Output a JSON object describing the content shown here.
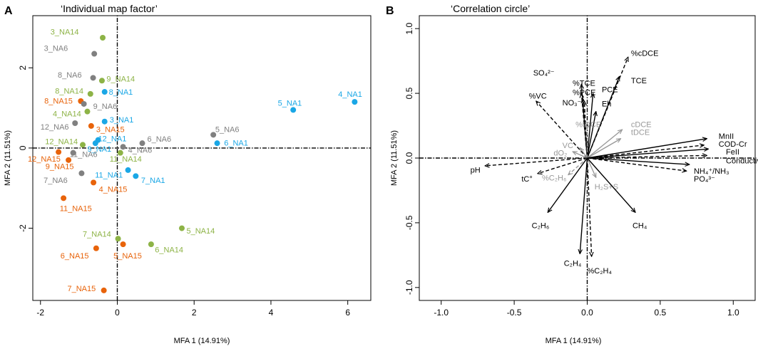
{
  "chart_data": [
    {
      "panel_label": "A",
      "type": "scatter",
      "title": "‘Individual map factor’",
      "xlabel": "MFA 1 (14.91%)",
      "ylabel": "MFA 2 (11.51%)",
      "xlim": [
        -2.2,
        6.6
      ],
      "ylim": [
        -3.8,
        3.3
      ],
      "xticks": [
        -2,
        0,
        2,
        4,
        6
      ],
      "yticks": [
        -2,
        0,
        2
      ],
      "colors": {
        "NA1": "#1aa7e6",
        "NA6": "#808080",
        "NA14": "#8db346",
        "NA15": "#e8630a"
      },
      "points": [
        {
          "label": "3_NA14",
          "group": "NA14",
          "x": -0.38,
          "y": 2.75,
          "lx": -1.74,
          "ly": 2.9
        },
        {
          "label": "3_NA6",
          "group": "NA6",
          "x": -0.6,
          "y": 2.35,
          "lx": -1.91,
          "ly": 2.49
        },
        {
          "label": "8_NA6",
          "group": "NA6",
          "x": -0.63,
          "y": 1.75,
          "lx": -1.55,
          "ly": 1.83
        },
        {
          "label": "9_NA14",
          "group": "NA14",
          "x": -0.4,
          "y": 1.68,
          "lx": -0.28,
          "ly": 1.73
        },
        {
          "label": "8_NA14",
          "group": "NA14",
          "x": -0.7,
          "y": 1.35,
          "lx": -1.62,
          "ly": 1.43
        },
        {
          "label": "8_NA1",
          "group": "NA1",
          "x": -0.33,
          "y": 1.4,
          "lx": -0.22,
          "ly": 1.4
        },
        {
          "label": "8_NA15",
          "group": "NA15",
          "x": -0.95,
          "y": 1.17,
          "lx": -1.9,
          "ly": 1.18
        },
        {
          "label": "9_NA6",
          "group": "NA6",
          "x": -0.87,
          "y": 1.1,
          "lx": -0.63,
          "ly": 1.05
        },
        {
          "label": "4_NA14",
          "group": "NA14",
          "x": -0.78,
          "y": 0.91,
          "lx": -1.68,
          "ly": 0.86
        },
        {
          "label": "3_NA1",
          "group": "NA1",
          "x": -0.33,
          "y": 0.66,
          "lx": -0.2,
          "ly": 0.71
        },
        {
          "label": "12_NA6",
          "group": "NA6",
          "x": -1.1,
          "y": 0.62,
          "lx": -2.0,
          "ly": 0.53
        },
        {
          "label": "3_NA15",
          "group": "NA15",
          "x": -0.68,
          "y": 0.55,
          "lx": -0.55,
          "ly": 0.47
        },
        {
          "label": "12_NA1",
          "group": "NA1",
          "x": -0.5,
          "y": 0.2,
          "lx": -0.5,
          "ly": 0.24
        },
        {
          "label": "12_NA14",
          "group": "NA14",
          "x": -0.9,
          "y": 0.08,
          "lx": -1.88,
          "ly": 0.17
        },
        {
          "label": "9_NA1",
          "group": "NA1",
          "x": -0.57,
          "y": 0.12,
          "lx": -0.78,
          "ly": -0.02
        },
        {
          "label": "4_NA6",
          "group": "NA6",
          "x": 0.15,
          "y": 0.03,
          "lx": 0.28,
          "ly": -0.05
        },
        {
          "label": "6_NA6",
          "group": "NA6",
          "x": 0.65,
          "y": 0.12,
          "lx": 0.78,
          "ly": 0.23
        },
        {
          "label": "11_NA6",
          "group": "NA6",
          "x": -1.15,
          "y": -0.12,
          "lx": -1.24,
          "ly": -0.15
        },
        {
          "label": "11_NA14",
          "group": "NA14",
          "x": 0.08,
          "y": -0.12,
          "lx": -0.2,
          "ly": -0.27
        },
        {
          "label": "12_NA15",
          "group": "NA15",
          "x": -1.53,
          "y": -0.1,
          "lx": -2.33,
          "ly": -0.27
        },
        {
          "label": "9_NA15",
          "group": "NA15",
          "x": -1.27,
          "y": -0.3,
          "lx": -1.87,
          "ly": -0.45
        },
        {
          "label": "7_NA6",
          "group": "NA6",
          "x": -0.93,
          "y": -0.63,
          "lx": -1.92,
          "ly": -0.8
        },
        {
          "label": "11_NA1",
          "group": "NA1",
          "x": 0.28,
          "y": -0.55,
          "lx": -0.58,
          "ly": -0.67
        },
        {
          "label": "7_NA1",
          "group": "NA1",
          "x": 0.48,
          "y": -0.7,
          "lx": 0.62,
          "ly": -0.8
        },
        {
          "label": "4_NA15",
          "group": "NA15",
          "x": -0.62,
          "y": -0.86,
          "lx": -0.48,
          "ly": -1.02
        },
        {
          "label": "11_NA15",
          "group": "NA15",
          "x": -1.4,
          "y": -1.25,
          "lx": -1.5,
          "ly": -1.5
        },
        {
          "label": "5_NA14",
          "group": "NA14",
          "x": 1.68,
          "y": -2.0,
          "lx": 1.8,
          "ly": -2.06
        },
        {
          "label": "7_NA14",
          "group": "NA14",
          "x": 0.02,
          "y": -2.26,
          "lx": -0.9,
          "ly": -2.14
        },
        {
          "label": "6_NA14",
          "group": "NA14",
          "x": 0.88,
          "y": -2.4,
          "lx": 0.98,
          "ly": -2.53
        },
        {
          "label": "5_NA15",
          "group": "NA15",
          "x": 0.15,
          "y": -2.4,
          "lx": -0.1,
          "ly": -2.68
        },
        {
          "label": "6_NA15",
          "group": "NA15",
          "x": -0.55,
          "y": -2.5,
          "lx": -1.48,
          "ly": -2.68
        },
        {
          "label": "7_NA15",
          "group": "NA15",
          "x": -0.35,
          "y": -3.55,
          "lx": -1.3,
          "ly": -3.5
        },
        {
          "label": "5_NA6",
          "group": "NA6",
          "x": 2.5,
          "y": 0.33,
          "lx": 2.55,
          "ly": 0.47
        },
        {
          "label": "6_NA1",
          "group": "NA1",
          "x": 2.6,
          "y": 0.12,
          "lx": 2.78,
          "ly": 0.13
        },
        {
          "label": "5_NA1",
          "group": "NA1",
          "x": 4.58,
          "y": 0.95,
          "lx": 4.18,
          "ly": 1.13
        },
        {
          "label": "4_NA1",
          "group": "NA1",
          "x": 6.18,
          "y": 1.15,
          "lx": 5.75,
          "ly": 1.35
        }
      ]
    },
    {
      "panel_label": "B",
      "type": "vector",
      "title": "‘Correlation circle’",
      "xlabel": "MFA 1 (14.91%)",
      "ylabel": "MFA 2 (11.51%)",
      "xlim": [
        -1.15,
        1.15
      ],
      "ylim": [
        -1.1,
        1.1
      ],
      "xticks": [
        -1.0,
        -0.5,
        0.0,
        0.5,
        1.0
      ],
      "yticks": [
        -1.0,
        -0.5,
        0.0,
        0.5,
        1.0
      ],
      "tick_labels": [
        "-1.0",
        "-0.5",
        "0.0",
        "0.5",
        "1.0"
      ],
      "colors": {
        "active": "#000000",
        "supplementary": "#999999"
      },
      "vectors": [
        {
          "label": "%cDCE",
          "x": 0.28,
          "y": 0.78,
          "lx": 0.3,
          "ly": 0.81,
          "dash": true,
          "grey": false
        },
        {
          "label": "TCE",
          "x": 0.22,
          "y": 0.63,
          "lx": 0.3,
          "ly": 0.6,
          "dash": false,
          "grey": false
        },
        {
          "label": "SO₄²⁻",
          "x": -0.04,
          "y": 0.57,
          "lx": -0.37,
          "ly": 0.66,
          "dash": false,
          "grey": false
        },
        {
          "label": "%TCE",
          "x": -0.04,
          "y": 0.5,
          "lx": -0.1,
          "ly": 0.58,
          "dash": true,
          "grey": false
        },
        {
          "label": "%PCE",
          "x": -0.03,
          "y": 0.46,
          "lx": -0.1,
          "ly": 0.51,
          "dash": true,
          "grey": false
        },
        {
          "label": "PCE",
          "x": 0.04,
          "y": 0.5,
          "lx": 0.1,
          "ly": 0.53,
          "dash": false,
          "grey": false
        },
        {
          "label": "NO₃⁻",
          "x": -0.02,
          "y": 0.44,
          "lx": -0.17,
          "ly": 0.43,
          "dash": true,
          "grey": false
        },
        {
          "label": "%VC",
          "x": -0.35,
          "y": 0.44,
          "lx": -0.4,
          "ly": 0.48,
          "dash": true,
          "grey": false
        },
        {
          "label": "Eh",
          "x": 0.06,
          "y": 0.36,
          "lx": 0.1,
          "ly": 0.42,
          "dash": false,
          "grey": false
        },
        {
          "label": "%tDCE",
          "x": 0.0,
          "y": 0.27,
          "lx": -0.08,
          "ly": 0.26,
          "dash": true,
          "grey": true
        },
        {
          "label": "cDCE",
          "x": 0.24,
          "y": 0.22,
          "lx": 0.3,
          "ly": 0.26,
          "dash": false,
          "grey": true
        },
        {
          "label": "tDCE",
          "x": 0.23,
          "y": 0.15,
          "lx": 0.3,
          "ly": 0.2,
          "dash": false,
          "grey": true
        },
        {
          "label": "VC",
          "x": -0.05,
          "y": 0.08,
          "lx": -0.17,
          "ly": 0.1,
          "dash": false,
          "grey": true
        },
        {
          "label": "dO₂",
          "x": -0.1,
          "y": 0.05,
          "lx": -0.23,
          "ly": 0.04,
          "dash": false,
          "grey": true
        },
        {
          "label": "MnII",
          "x": 0.82,
          "y": 0.15,
          "lx": 0.9,
          "ly": 0.17,
          "dash": false,
          "grey": false
        },
        {
          "label": "COD-Cr",
          "x": 0.8,
          "y": 0.1,
          "lx": 0.9,
          "ly": 0.11,
          "dash": true,
          "grey": false
        },
        {
          "label": "FeII",
          "x": 0.83,
          "y": 0.07,
          "lx": 0.95,
          "ly": 0.05,
          "dash": false,
          "grey": false
        },
        {
          "label": "Conductivity",
          "x": 0.82,
          "y": 0.02,
          "lx": 0.95,
          "ly": -0.02,
          "dash": true,
          "grey": false
        },
        {
          "label": "NH₄⁺/NH₃",
          "x": 0.7,
          "y": -0.05,
          "lx": 0.73,
          "ly": -0.1,
          "dash": false,
          "grey": false
        },
        {
          "label": "PO₄³⁻",
          "x": 0.68,
          "y": -0.1,
          "lx": 0.73,
          "ly": -0.16,
          "dash": true,
          "grey": false
        },
        {
          "label": "pH",
          "x": -0.7,
          "y": -0.06,
          "lx": -0.8,
          "ly": -0.09,
          "dash": true,
          "grey": false
        },
        {
          "label": "tC°",
          "x": -0.34,
          "y": -0.12,
          "lx": -0.45,
          "ly": -0.16,
          "dash": true,
          "grey": false
        },
        {
          "label": "%C₂H₆",
          "x": -0.13,
          "y": -0.13,
          "lx": -0.31,
          "ly": -0.15,
          "dash": true,
          "grey": true
        },
        {
          "label": "H₂S+S",
          "x": 0.06,
          "y": -0.15,
          "lx": 0.05,
          "ly": -0.22,
          "dash": false,
          "grey": true
        },
        {
          "label": "CH₄",
          "x": 0.33,
          "y": -0.42,
          "lx": 0.31,
          "ly": -0.52,
          "dash": false,
          "grey": false
        },
        {
          "label": "C₂H₆",
          "x": -0.27,
          "y": -0.42,
          "lx": -0.38,
          "ly": -0.52,
          "dash": false,
          "grey": false
        },
        {
          "label": "C₂H₄",
          "x": -0.05,
          "y": -0.74,
          "lx": -0.16,
          "ly": -0.81,
          "dash": false,
          "grey": false
        },
        {
          "label": "%C₂H₄",
          "x": 0.03,
          "y": -0.76,
          "lx": 0.0,
          "ly": -0.87,
          "dash": true,
          "grey": false
        }
      ]
    }
  ]
}
